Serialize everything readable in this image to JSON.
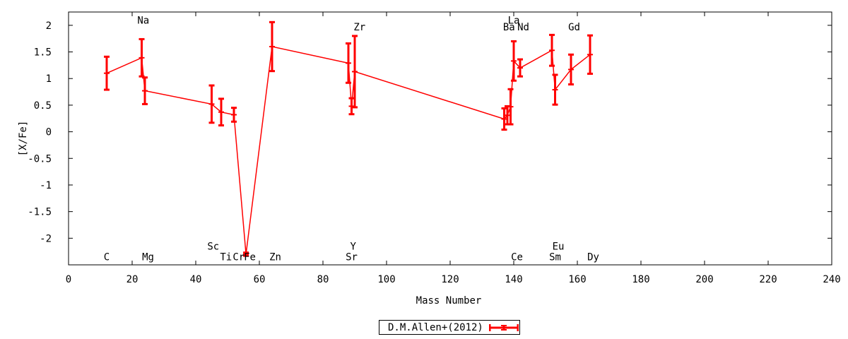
{
  "chart_data": {
    "type": "line",
    "title": "",
    "xlabel": "Mass Number",
    "ylabel": "[X/Fe]",
    "xlim": [
      0,
      240
    ],
    "ylim": [
      -2.5,
      2.25
    ],
    "xticks": [
      0,
      20,
      40,
      60,
      80,
      100,
      120,
      140,
      160,
      180,
      200,
      220,
      240
    ],
    "yticks": [
      -2,
      -1.5,
      -1,
      -0.5,
      0,
      0.5,
      1,
      1.5,
      2
    ],
    "ytick_labels": [
      "-2",
      "-1.5",
      "-1",
      "-0.5",
      "0",
      "0.5",
      "1",
      "1.5",
      "2"
    ],
    "grid": false,
    "legend_position": "bottom-center",
    "color": "#ff0000",
    "series": [
      {
        "name": "D.M.Allen+(2012)",
        "points": [
          {
            "x": 12,
            "y": 1.1,
            "err": 0.31
          },
          {
            "x": 23,
            "y": 1.39,
            "err": 0.35
          },
          {
            "x": 24,
            "y": 0.77,
            "err": 0.25
          },
          {
            "x": 45,
            "y": 0.52,
            "err": 0.35
          },
          {
            "x": 48,
            "y": 0.37,
            "err": 0.25
          },
          {
            "x": 52,
            "y": 0.32,
            "err": 0.13
          },
          {
            "x": 55.8,
            "y": -2.3,
            "err": 0.03
          },
          {
            "x": 64,
            "y": 1.6,
            "err": 0.46
          },
          {
            "x": 88,
            "y": 1.29,
            "err": 0.37
          },
          {
            "x": 89,
            "y": 0.48,
            "err": 0.15
          },
          {
            "x": 90,
            "y": 1.13,
            "err": 0.67
          },
          {
            "x": 137,
            "y": 0.24,
            "err": 0.2
          },
          {
            "x": 138,
            "y": 0.31,
            "err": 0.17
          },
          {
            "x": 139,
            "y": 0.47,
            "err": 0.33
          },
          {
            "x": 140,
            "y": 1.33,
            "err": 0.37
          },
          {
            "x": 142,
            "y": 1.2,
            "err": 0.16
          },
          {
            "x": 152,
            "y": 1.53,
            "err": 0.29
          },
          {
            "x": 153,
            "y": 0.79,
            "err": 0.28
          },
          {
            "x": 158,
            "y": 1.17,
            "err": 0.28
          },
          {
            "x": 164,
            "y": 1.45,
            "err": 0.36
          }
        ]
      }
    ],
    "annotations": [
      {
        "text": "C",
        "x": 12,
        "y": -2.35
      },
      {
        "text": "Na",
        "x": 23.5,
        "y": 2.1
      },
      {
        "text": "Mg",
        "x": 25,
        "y": -2.35
      },
      {
        "text": "Sc",
        "x": 45.5,
        "y": -2.15
      },
      {
        "text": "Ti",
        "x": 49.5,
        "y": -2.35
      },
      {
        "text": "Cr",
        "x": 53.5,
        "y": -2.35
      },
      {
        "text": "Fe",
        "x": 57,
        "y": -2.35
      },
      {
        "text": "Zn",
        "x": 65,
        "y": -2.35
      },
      {
        "text": "Y",
        "x": 89.5,
        "y": -2.15
      },
      {
        "text": "Sr",
        "x": 89,
        "y": -2.35
      },
      {
        "text": "Zr",
        "x": 91.5,
        "y": 1.97
      },
      {
        "text": "La",
        "x": 140,
        "y": 2.1
      },
      {
        "text": "Ba",
        "x": 138.5,
        "y": 1.97
      },
      {
        "text": "Nd",
        "x": 143,
        "y": 1.97
      },
      {
        "text": "Ce",
        "x": 141,
        "y": -2.35
      },
      {
        "text": "Eu",
        "x": 154,
        "y": -2.15
      },
      {
        "text": "Sm",
        "x": 153,
        "y": -2.35
      },
      {
        "text": "Gd",
        "x": 159,
        "y": 1.97
      },
      {
        "text": "Dy",
        "x": 165,
        "y": -2.35
      }
    ]
  }
}
